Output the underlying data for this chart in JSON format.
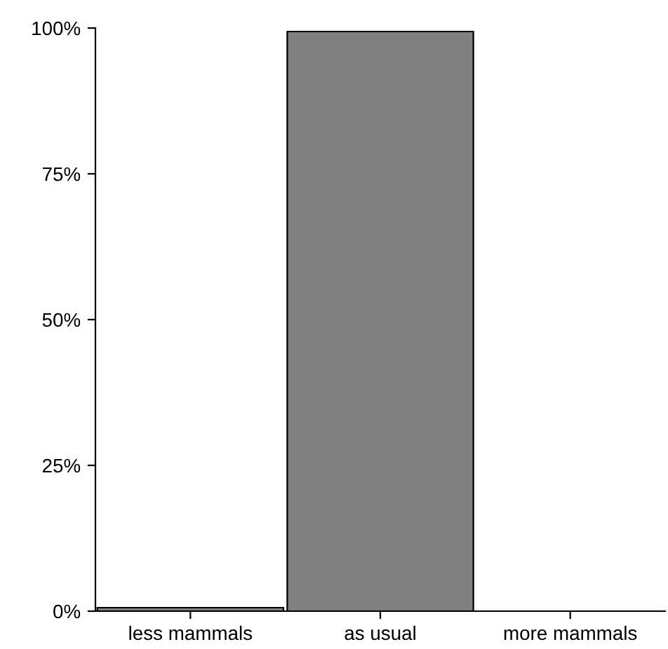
{
  "chart_data": {
    "type": "bar",
    "categories": [
      "less mammals",
      "as usual",
      "more mammals"
    ],
    "values": [
      0.6,
      99.4,
      0
    ],
    "color": "#808080",
    "ylim": [
      0,
      100
    ],
    "yticks": [
      {
        "value": 0,
        "label": "0%"
      },
      {
        "value": 25,
        "label": "25%"
      },
      {
        "value": 50,
        "label": "50%"
      },
      {
        "value": 75,
        "label": "75%"
      },
      {
        "value": 100,
        "label": "100%"
      }
    ],
    "grid": false
  }
}
